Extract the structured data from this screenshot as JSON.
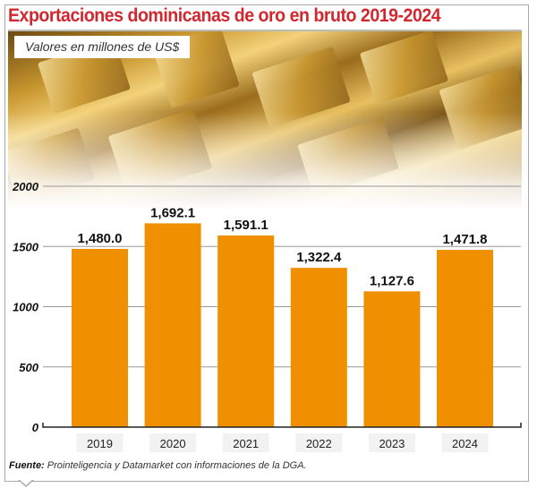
{
  "title": "Exportaciones dominicanas de oro en bruto 2019-2024",
  "subtitle": "Valores en millones de US$",
  "footer": {
    "label": "Fuente:",
    "text": "Prointeligencia y Datamarket con informaciones de la DGA."
  },
  "colors": {
    "title": "#d0282e",
    "bar": "#f09000",
    "axis": "#222222",
    "gridline": "#999999"
  },
  "background_image": "gold-bars-photo",
  "chart_data": {
    "type": "bar",
    "categories": [
      "2019",
      "2020",
      "2021",
      "2022",
      "2023",
      "2024"
    ],
    "values": [
      1480.0,
      1692.1,
      1591.1,
      1322.4,
      1127.6,
      1471.8
    ],
    "data_labels": [
      "1,480.0",
      "1,692.1",
      "1,591.1",
      "1,322.4",
      "1,127.6",
      "1,471.8"
    ],
    "title": "Exportaciones dominicanas de oro en bruto 2019-2024",
    "xlabel": "",
    "ylabel": "Valores en millones de US$",
    "ylim": [
      0,
      2000
    ],
    "yticks": [
      0,
      500,
      1000,
      1500,
      2000
    ],
    "grid": true,
    "legend": "none"
  }
}
